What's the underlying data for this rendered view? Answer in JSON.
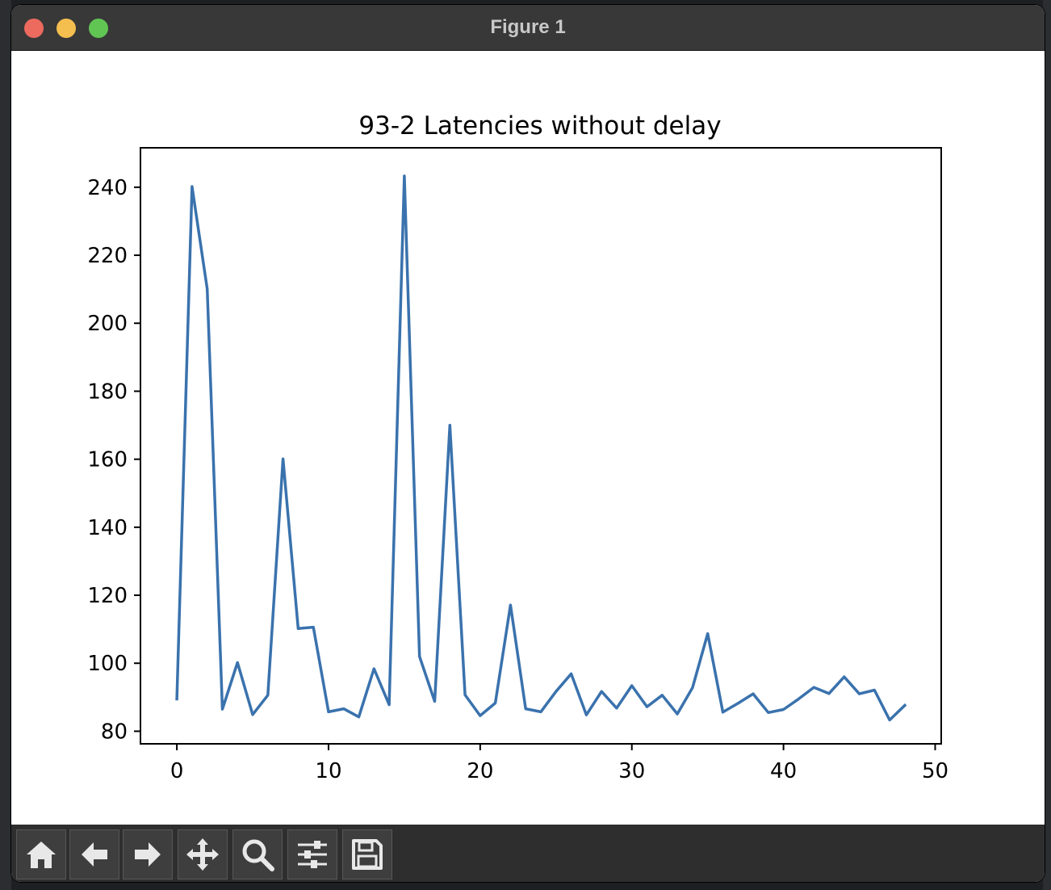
{
  "window": {
    "title": "Figure 1"
  },
  "toolbar": {
    "buttons": [
      {
        "icon": "home-icon"
      },
      {
        "icon": "back-arrow-icon"
      },
      {
        "icon": "forward-arrow-icon"
      },
      {
        "icon": "pan-move-icon"
      },
      {
        "icon": "zoom-magnifier-icon"
      },
      {
        "icon": "configure-subplots-icon"
      },
      {
        "icon": "save-floppy-icon"
      }
    ]
  },
  "colors": {
    "line": "#3a72ad",
    "titlebar": "#383838",
    "toolbar": "#2e2e2e"
  },
  "chart_data": {
    "type": "line",
    "title": "93-2 Latencies without delay",
    "xlabel": "",
    "ylabel": "",
    "xlim": [
      -2.4,
      50.4
    ],
    "ylim": [
      76.3,
      251.6
    ],
    "xticks": [
      0,
      10,
      20,
      30,
      40,
      50
    ],
    "yticks": [
      80,
      100,
      120,
      140,
      160,
      180,
      200,
      220,
      240
    ],
    "grid": false,
    "series": [
      {
        "x": [
          0,
          1,
          2,
          3,
          4,
          5,
          6,
          7,
          8,
          9,
          10,
          11,
          12,
          13,
          14,
          15,
          16,
          17,
          18,
          19,
          20,
          21,
          22,
          23,
          24,
          25,
          26,
          27,
          28,
          29,
          30,
          31,
          32,
          33,
          34,
          35,
          36,
          37,
          38,
          39,
          40,
          41,
          42,
          43,
          44,
          45,
          46,
          47,
          48
        ],
        "values": [
          89.5,
          240.2,
          210.1,
          86.5,
          100.2,
          84.9,
          90.6,
          160.1,
          110.2,
          110.6,
          85.7,
          86.6,
          84.2,
          98.4,
          87.8,
          243.3,
          102.0,
          88.8,
          170.0,
          90.7,
          84.6,
          88.3,
          117.1,
          86.6,
          85.7,
          91.7,
          96.9,
          84.8,
          91.7,
          86.8,
          93.4,
          87.2,
          90.6,
          85.1,
          92.8,
          108.7,
          85.6,
          88.2,
          91.0,
          85.5,
          86.4,
          89.5,
          92.9,
          91.1,
          96.0,
          91.0,
          92.1,
          83.3,
          87.6
        ]
      }
    ]
  }
}
